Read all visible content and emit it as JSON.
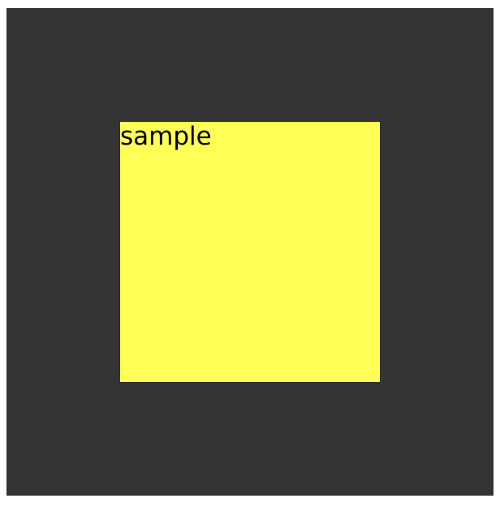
{
  "colors": {
    "page_background": "#ffffff",
    "stage_background": "#333333",
    "box_background": "#ffff55",
    "text": "#000000"
  },
  "box": {
    "label": "sample"
  }
}
